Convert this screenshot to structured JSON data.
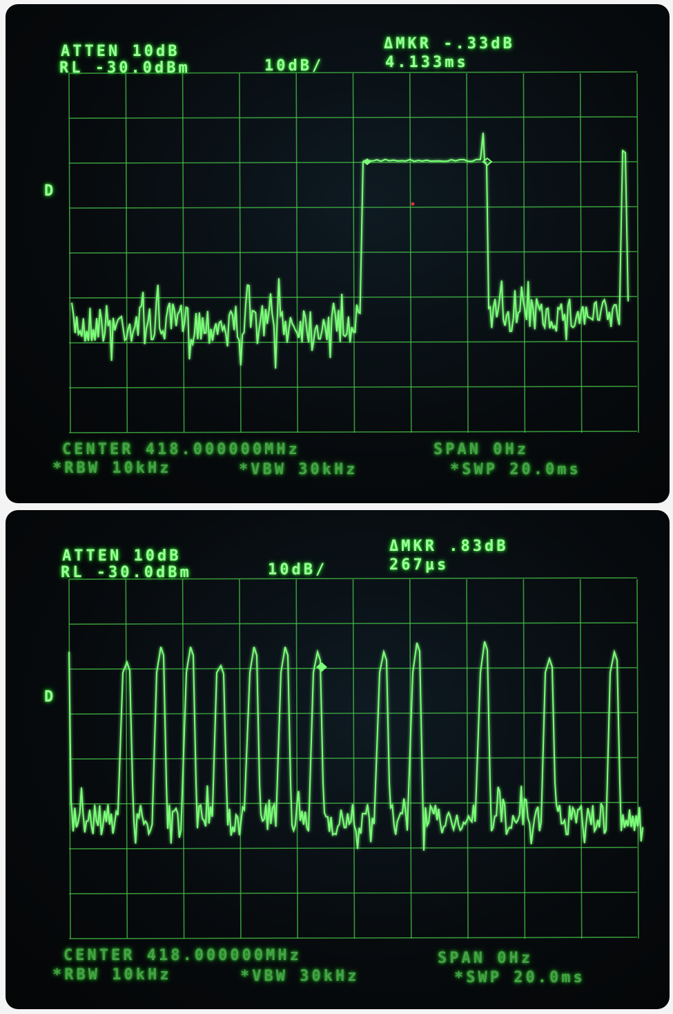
{
  "colors": {
    "trace": "#7dff7a",
    "grid": "#47c548",
    "text": "#9dff9a"
  },
  "displays": [
    {
      "atten": "ATTEN 10dB",
      "rl": "RL -30.0dBm",
      "scale": "10dB/",
      "delta_marker": "ΔMKR -.33dB",
      "delta_time": "4.133ms",
      "side_marker": "D",
      "center": "CENTER 418.000000MHz",
      "span": "SPAN 0Hz",
      "rbw": "*RBW 10kHz",
      "vbw": "*VBW 30kHz",
      "sweep": "*SWP 20.0ms",
      "trace_kind": "single-burst"
    },
    {
      "atten": "ATTEN 10dB",
      "rl": "RL -30.0dBm",
      "scale": "10dB/",
      "delta_marker": "ΔMKR .83dB",
      "delta_time": "267µs",
      "side_marker": "D",
      "center": "CENTER 418.000000MHz",
      "span": "SPAN 0Hz",
      "rbw": "*RBW 10kHz",
      "vbw": "*VBW 30kHz",
      "sweep": "*SWP 20.0ms",
      "trace_kind": "pulse-train"
    }
  ]
}
